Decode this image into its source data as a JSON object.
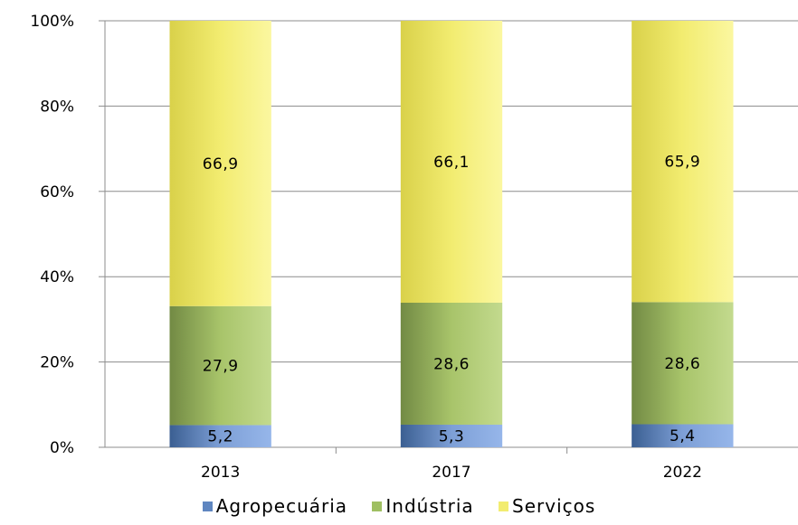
{
  "chart_data": {
    "type": "bar",
    "stacked": true,
    "percent": true,
    "categories": [
      "2013",
      "2017",
      "2022"
    ],
    "series": [
      {
        "name": "Agropecuária",
        "values": [
          5.2,
          5.3,
          5.4
        ],
        "labels": [
          "5,2",
          "5,3",
          "5,4"
        ],
        "color": "#4f81bd"
      },
      {
        "name": "Indústria",
        "values": [
          27.9,
          28.6,
          28.6
        ],
        "labels": [
          "27,9",
          "28,6",
          "28,6"
        ],
        "color": "#9bbb59"
      },
      {
        "name": "Serviços",
        "values": [
          66.9,
          66.1,
          65.9
        ],
        "labels": [
          "66,9",
          "66,1",
          "65,9"
        ],
        "color": "#f2ec70"
      }
    ],
    "yticks": [
      "0%",
      "20%",
      "40%",
      "60%",
      "80%",
      "100%"
    ],
    "ylim": [
      0,
      100
    ],
    "grid": true,
    "legend_position": "bottom"
  }
}
